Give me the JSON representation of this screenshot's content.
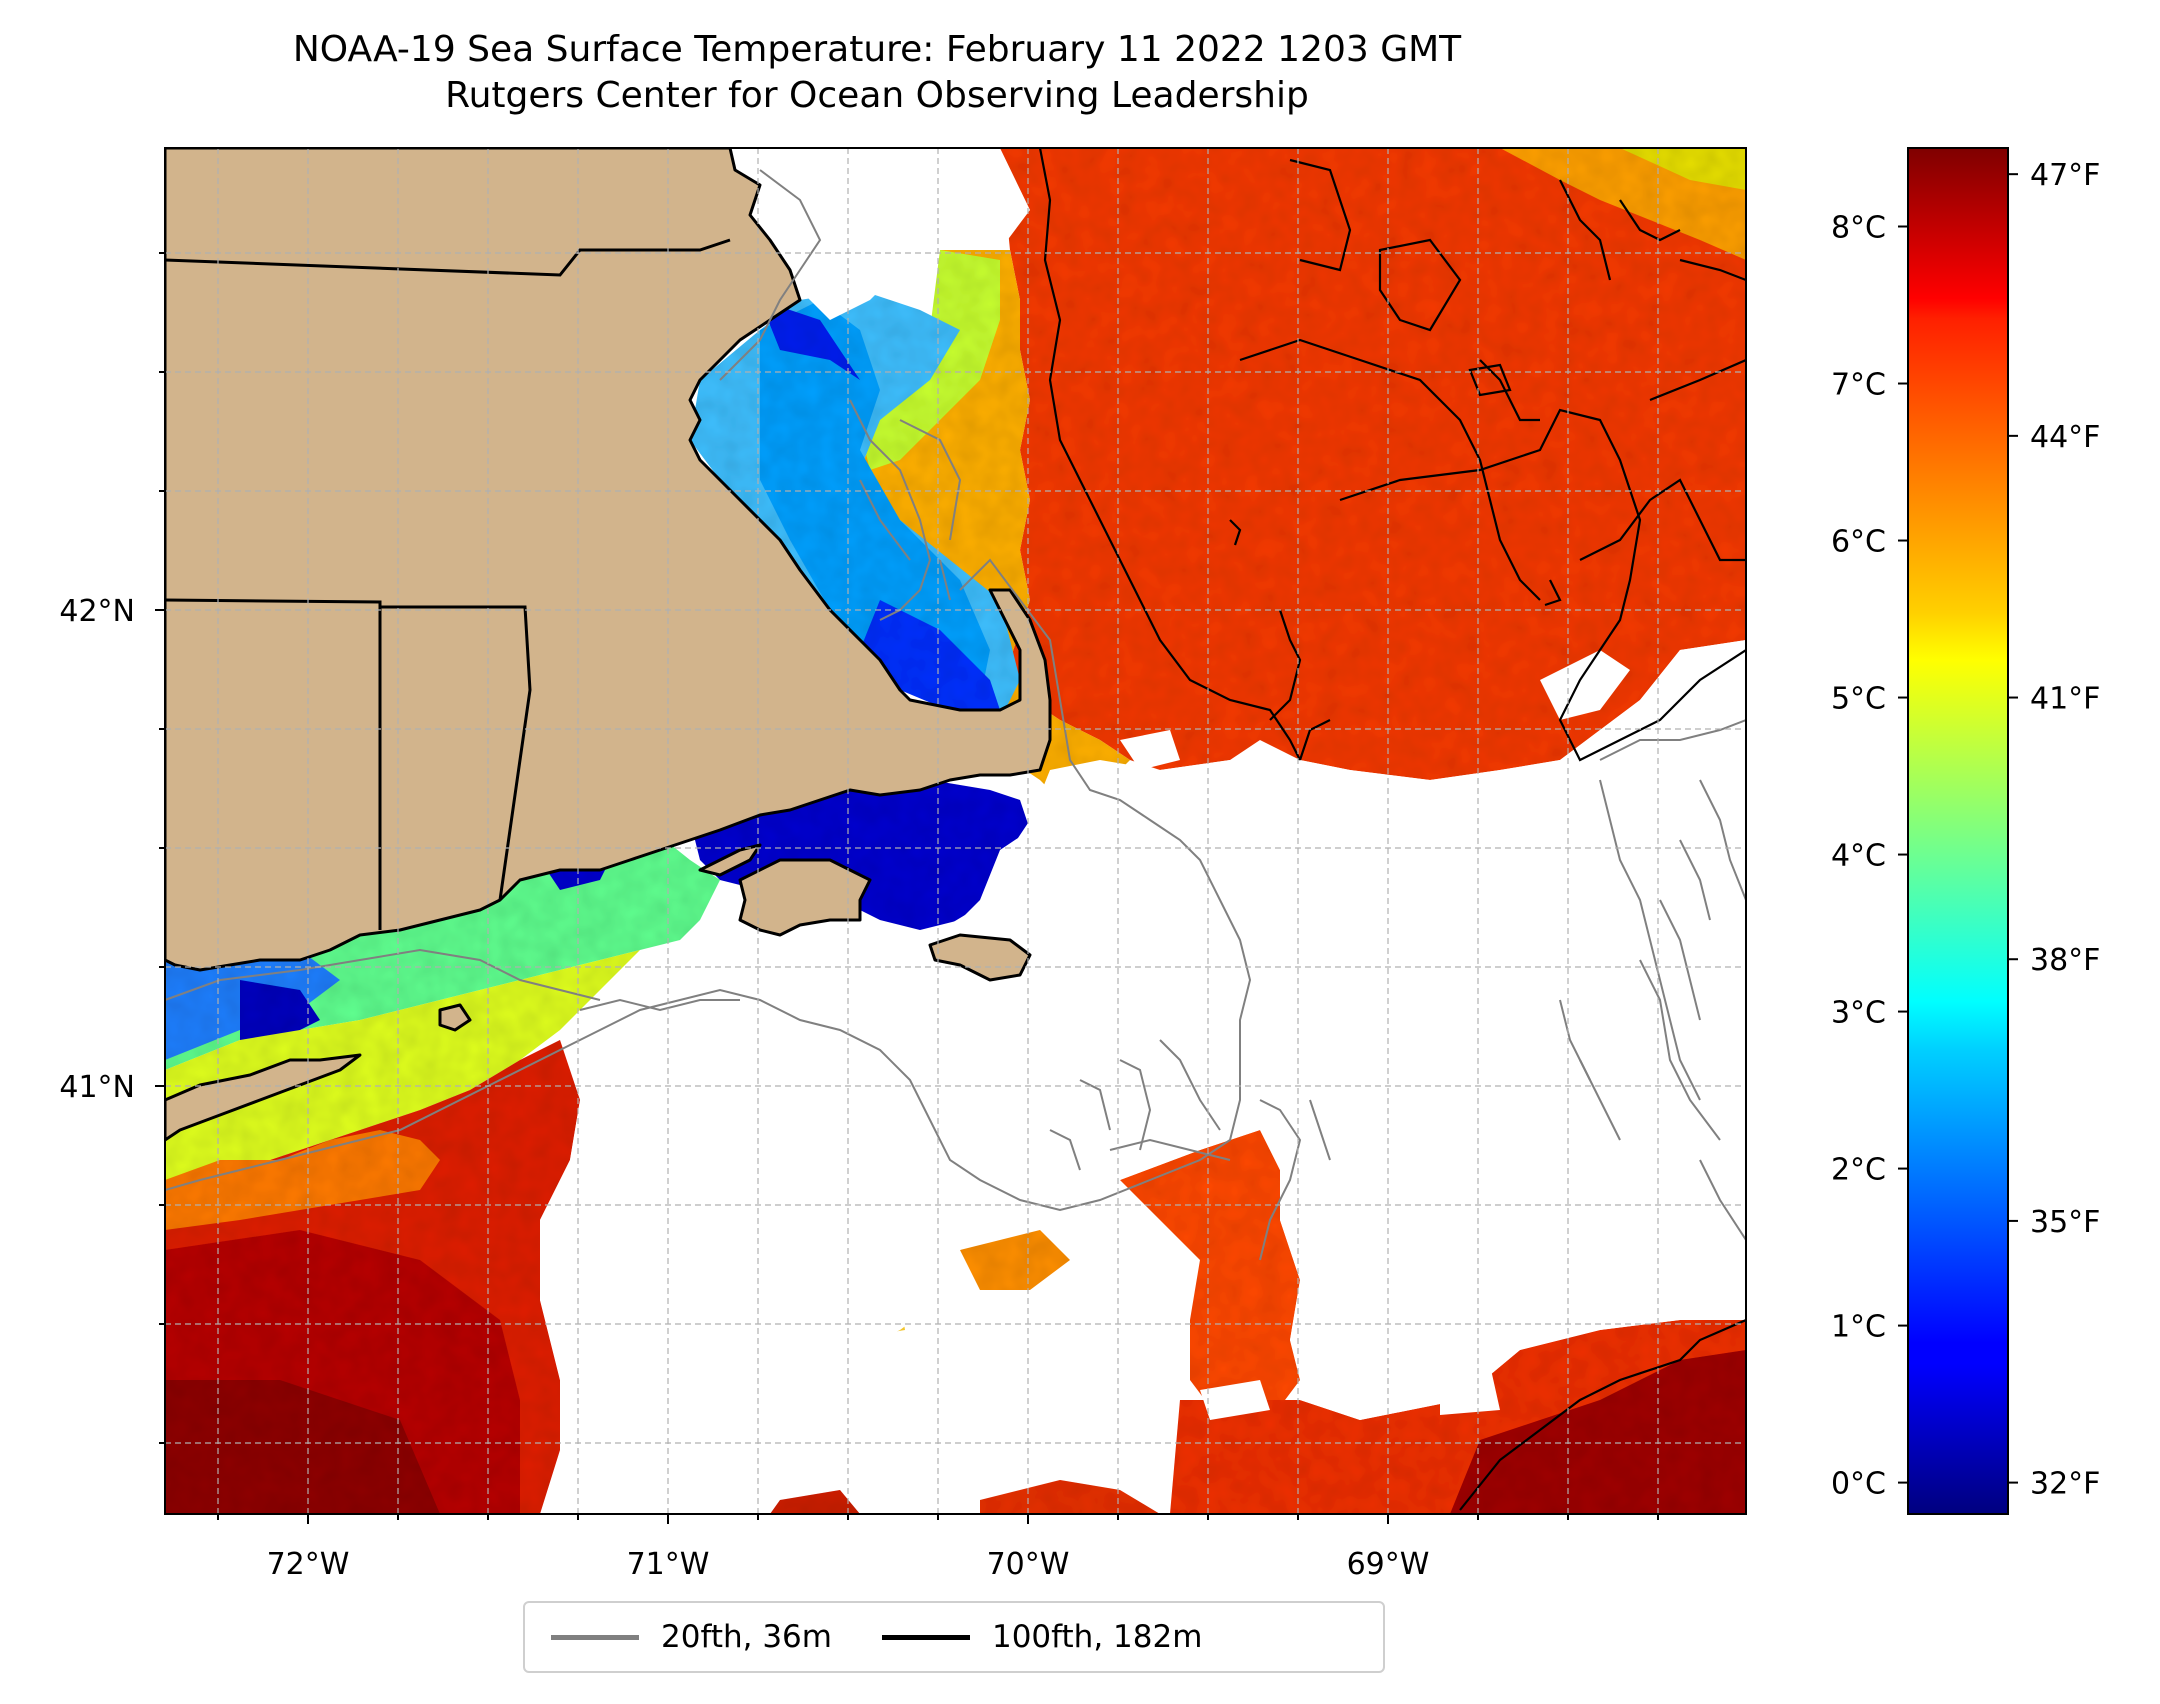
{
  "title_line1": "NOAA-19 Sea Surface Temperature: February 11 2022 1203 GMT",
  "title_line2": "Rutgers Center for Ocean Observing Leadership",
  "map": {
    "lon_ticks": [
      "72°W",
      "71°W",
      "70°W",
      "69°W"
    ],
    "lat_ticks": [
      "42°N",
      "41°N"
    ],
    "colors": {
      "land": "#d2b48c",
      "cloud_mask": "#ffffff",
      "contour_20fth": "#808080",
      "contour_100fth": "#000000",
      "gridline": "#b0b0b0"
    }
  },
  "colorbar": {
    "colormap": "jet",
    "celsius_ticks": [
      "0°C",
      "1°C",
      "2°C",
      "3°C",
      "4°C",
      "5°C",
      "6°C",
      "7°C",
      "8°C"
    ],
    "fahrenheit_ticks": [
      "32°F",
      "35°F",
      "38°F",
      "41°F",
      "44°F",
      "47°F"
    ],
    "celsius_values": [
      0,
      1,
      2,
      3,
      4,
      5,
      6,
      7,
      8
    ],
    "fahrenheit_values": [
      32,
      35,
      38,
      41,
      44,
      47
    ],
    "range_c": [
      -0.2,
      8.5
    ]
  },
  "legend": {
    "items": [
      {
        "label": "20fth, 36m",
        "color": "#808080"
      },
      {
        "label": "100fth, 182m",
        "color": "#000000"
      }
    ]
  }
}
